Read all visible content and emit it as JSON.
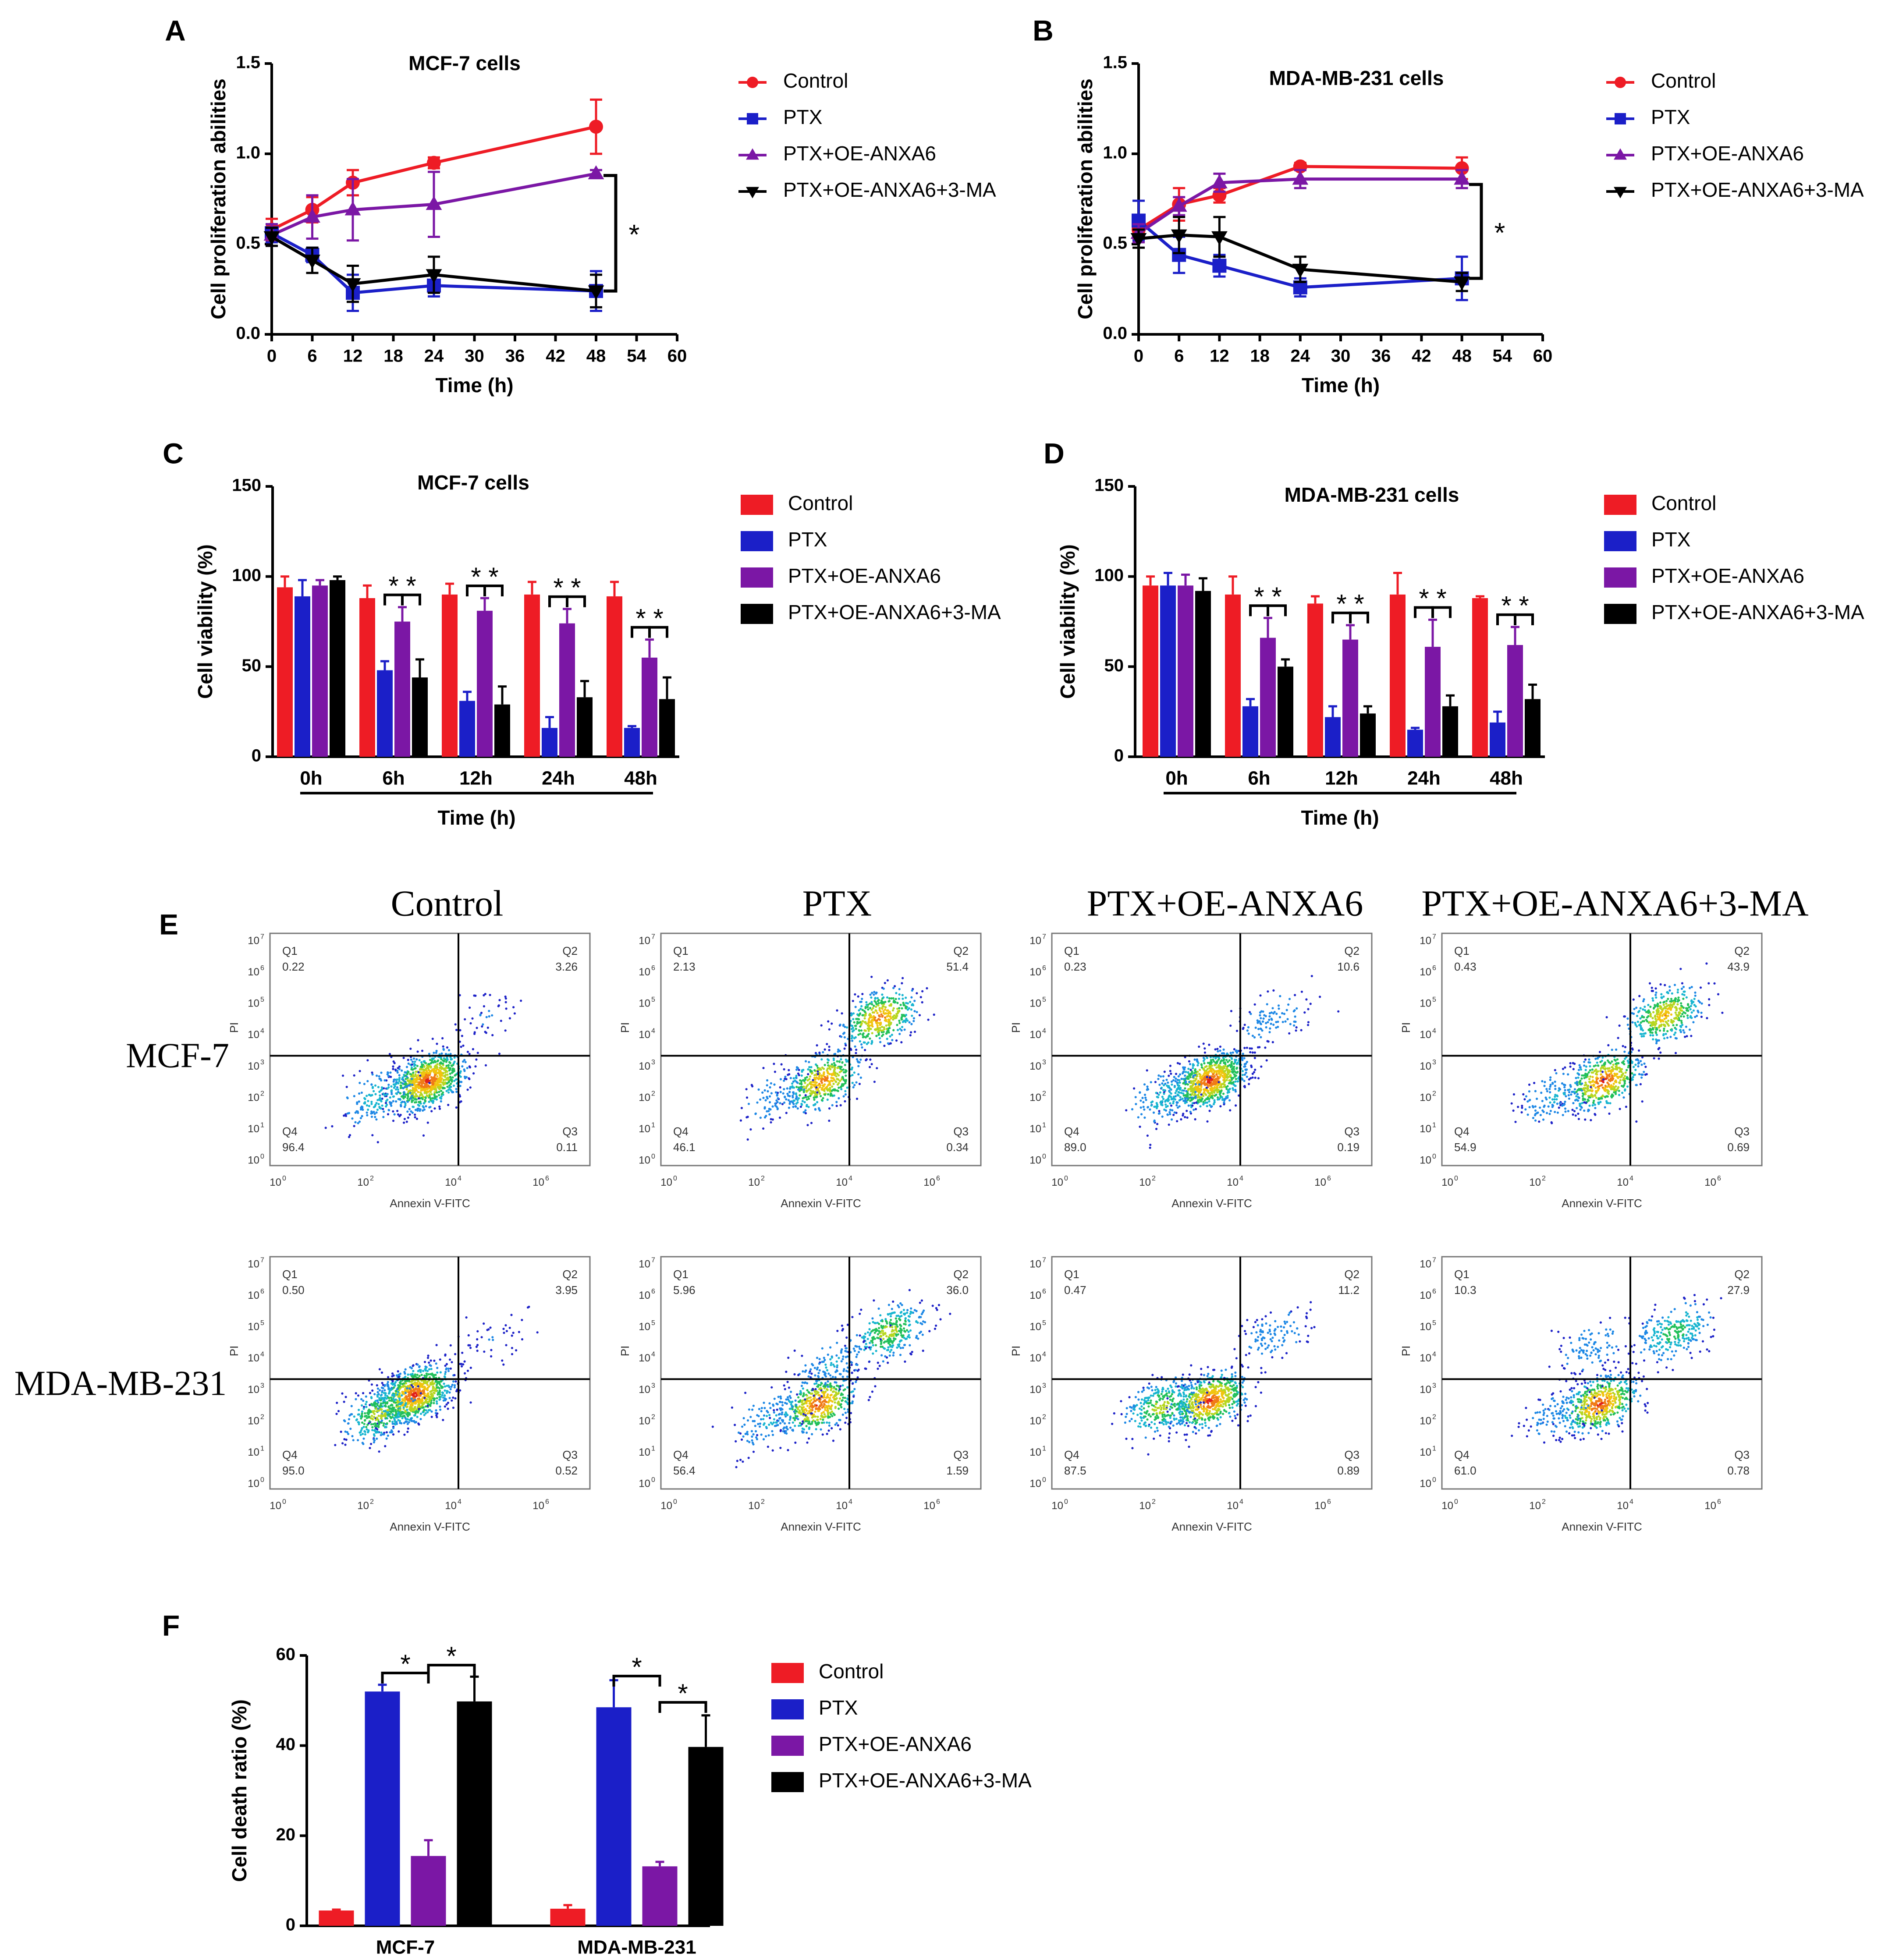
{
  "colors": {
    "control": "#ee1c25",
    "ptx": "#1b1fc8",
    "oe": "#7b17a5",
    "ma": "#000000"
  },
  "chart_data": [
    {
      "id": "A",
      "panel_letter": "A",
      "type": "line",
      "title": "MCF-7 cells",
      "xlabel": "Time (h)",
      "ylabel": "Cell proliferation abilities",
      "xlim": [
        0,
        60
      ],
      "ylim": [
        0,
        1.5
      ],
      "xticks": [
        0,
        6,
        12,
        18,
        24,
        30,
        36,
        42,
        48,
        54,
        60
      ],
      "yticks": [
        0.0,
        0.5,
        1.0,
        1.5
      ],
      "ytick_labels": [
        "0.0",
        "0.5",
        "1.0",
        "1.5"
      ],
      "x": [
        0,
        6,
        12,
        24,
        48
      ],
      "series": [
        {
          "name": "Control",
          "values": [
            0.58,
            0.69,
            0.84,
            0.95,
            1.15
          ],
          "errors": [
            0.06,
            0.07,
            0.07,
            0.03,
            0.15
          ],
          "marker": "circle"
        },
        {
          "name": "PTX",
          "values": [
            0.56,
            0.44,
            0.23,
            0.27,
            0.24
          ],
          "errors": [
            0.05,
            0.04,
            0.1,
            0.06,
            0.11
          ],
          "marker": "square"
        },
        {
          "name": "PTX+OE-ANXA6",
          "values": [
            0.55,
            0.65,
            0.69,
            0.72,
            0.89
          ],
          "errors": [
            0.06,
            0.12,
            0.17,
            0.18,
            0.02
          ],
          "marker": "triangle-up"
        },
        {
          "name": "PTX+OE-ANXA6+3-MA",
          "values": [
            0.54,
            0.41,
            0.28,
            0.33,
            0.24
          ],
          "errors": [
            0.05,
            0.07,
            0.1,
            0.1,
            0.09
          ],
          "marker": "triangle-down"
        }
      ],
      "significance": [
        {
          "label": "*",
          "between": [
            "PTX+OE-ANXA6",
            "PTX+OE-ANXA6+3-MA"
          ],
          "at_x": 48,
          "y_range": [
            0.88,
            0.24
          ]
        }
      ]
    },
    {
      "id": "B",
      "panel_letter": "B",
      "type": "line",
      "title": "MDA-MB-231 cells",
      "xlabel": "Time (h)",
      "ylabel": "Cell proliferation abilities",
      "xlim": [
        0,
        60
      ],
      "ylim": [
        0,
        1.5
      ],
      "xticks": [
        0,
        6,
        12,
        18,
        24,
        30,
        36,
        42,
        48,
        54,
        60
      ],
      "yticks": [
        0.0,
        0.5,
        1.0,
        1.5
      ],
      "ytick_labels": [
        "0.0",
        "0.5",
        "1.0",
        "1.5"
      ],
      "x": [
        0,
        6,
        12,
        24,
        48
      ],
      "series": [
        {
          "name": "Control",
          "values": [
            0.58,
            0.72,
            0.77,
            0.93,
            0.92
          ],
          "errors": [
            0.05,
            0.09,
            0.04,
            0.02,
            0.06
          ],
          "marker": "circle"
        },
        {
          "name": "PTX",
          "values": [
            0.63,
            0.44,
            0.38,
            0.26,
            0.31
          ],
          "errors": [
            0.11,
            0.1,
            0.06,
            0.05,
            0.12
          ],
          "marker": "square"
        },
        {
          "name": "PTX+OE-ANXA6",
          "values": [
            0.56,
            0.71,
            0.84,
            0.86,
            0.86
          ],
          "errors": [
            0.05,
            0.05,
            0.05,
            0.05,
            0.05
          ],
          "marker": "triangle-up"
        },
        {
          "name": "PTX+OE-ANXA6+3-MA",
          "values": [
            0.53,
            0.55,
            0.54,
            0.36,
            0.29
          ],
          "errors": [
            0.05,
            0.1,
            0.11,
            0.07,
            0.05
          ],
          "marker": "triangle-down"
        }
      ],
      "significance": [
        {
          "label": "*",
          "between": [
            "PTX+OE-ANXA6",
            "PTX+OE-ANXA6+3-MA"
          ],
          "at_x": 48,
          "y_range": [
            0.83,
            0.31
          ]
        }
      ]
    },
    {
      "id": "C",
      "panel_letter": "C",
      "type": "bar",
      "title": "MCF-7 cells",
      "xlabel": "Time (h)",
      "ylabel": "Cell viability (%)",
      "ylim": [
        0,
        150
      ],
      "yticks": [
        0,
        50,
        100,
        150
      ],
      "ytick_labels": [
        "0",
        "50",
        "100",
        "150"
      ],
      "categories": [
        "0h",
        "6h",
        "12h",
        "24h",
        "48h"
      ],
      "series": [
        {
          "name": "Control",
          "values": [
            94,
            88,
            90,
            90,
            89
          ],
          "errors": [
            6,
            7,
            6,
            7,
            8
          ]
        },
        {
          "name": "PTX",
          "values": [
            89,
            48,
            31,
            16,
            16
          ],
          "errors": [
            9,
            5,
            5,
            6,
            1
          ]
        },
        {
          "name": "PTX+OE-ANXA6",
          "values": [
            95,
            75,
            81,
            74,
            55
          ],
          "errors": [
            3,
            8,
            7,
            8,
            10
          ]
        },
        {
          "name": "PTX+OE-ANXA6+3-MA",
          "values": [
            98,
            44,
            29,
            33,
            32
          ],
          "errors": [
            2,
            10,
            10,
            9,
            12
          ]
        }
      ],
      "significance": [
        {
          "category": "6h",
          "label": "*",
          "between": [
            "PTX",
            "PTX+OE-ANXA6"
          ]
        },
        {
          "category": "6h",
          "label": "*",
          "between": [
            "PTX+OE-ANXA6",
            "PTX+OE-ANXA6+3-MA"
          ]
        },
        {
          "category": "12h",
          "label": "*",
          "between": [
            "PTX",
            "PTX+OE-ANXA6"
          ]
        },
        {
          "category": "12h",
          "label": "*",
          "between": [
            "PTX+OE-ANXA6",
            "PTX+OE-ANXA6+3-MA"
          ]
        },
        {
          "category": "24h",
          "label": "*",
          "between": [
            "PTX",
            "PTX+OE-ANXA6"
          ]
        },
        {
          "category": "24h",
          "label": "*",
          "between": [
            "PTX+OE-ANXA6",
            "PTX+OE-ANXA6+3-MA"
          ]
        },
        {
          "category": "48h",
          "label": "*",
          "between": [
            "PTX",
            "PTX+OE-ANXA6"
          ]
        },
        {
          "category": "48h",
          "label": "*",
          "between": [
            "PTX+OE-ANXA6",
            "PTX+OE-ANXA6+3-MA"
          ]
        }
      ]
    },
    {
      "id": "D",
      "panel_letter": "D",
      "type": "bar",
      "title": "MDA-MB-231 cells",
      "xlabel": "Time (h)",
      "ylabel": "Cell viability (%)",
      "ylim": [
        0,
        150
      ],
      "yticks": [
        0,
        50,
        100,
        150
      ],
      "ytick_labels": [
        "0",
        "50",
        "100",
        "150"
      ],
      "categories": [
        "0h",
        "6h",
        "12h",
        "24h",
        "48h"
      ],
      "series": [
        {
          "name": "Control",
          "values": [
            95,
            90,
            85,
            90,
            88
          ],
          "errors": [
            5,
            10,
            4,
            12,
            1
          ]
        },
        {
          "name": "PTX",
          "values": [
            95,
            28,
            22,
            15,
            19
          ],
          "errors": [
            7,
            4,
            6,
            1,
            6
          ]
        },
        {
          "name": "PTX+OE-ANXA6",
          "values": [
            95,
            66,
            65,
            61,
            62
          ],
          "errors": [
            6,
            11,
            8,
            15,
            10
          ]
        },
        {
          "name": "PTX+OE-ANXA6+3-MA",
          "values": [
            92,
            50,
            24,
            28,
            32
          ],
          "errors": [
            7,
            4,
            4,
            6,
            8
          ]
        }
      ],
      "significance": [
        {
          "category": "6h",
          "label": "*",
          "between": [
            "PTX",
            "PTX+OE-ANXA6"
          ]
        },
        {
          "category": "6h",
          "label": "*",
          "between": [
            "PTX+OE-ANXA6",
            "PTX+OE-ANXA6+3-MA"
          ]
        },
        {
          "category": "12h",
          "label": "*",
          "between": [
            "PTX",
            "PTX+OE-ANXA6"
          ]
        },
        {
          "category": "12h",
          "label": "*",
          "between": [
            "PTX+OE-ANXA6",
            "PTX+OE-ANXA6+3-MA"
          ]
        },
        {
          "category": "24h",
          "label": "*",
          "between": [
            "PTX",
            "PTX+OE-ANXA6"
          ]
        },
        {
          "category": "24h",
          "label": "*",
          "between": [
            "PTX+OE-ANXA6",
            "PTX+OE-ANXA6+3-MA"
          ]
        },
        {
          "category": "48h",
          "label": "*",
          "between": [
            "PTX",
            "PTX+OE-ANXA6"
          ]
        },
        {
          "category": "48h",
          "label": "*",
          "between": [
            "PTX+OE-ANXA6",
            "PTX+OE-ANXA6+3-MA"
          ]
        }
      ]
    },
    {
      "id": "E",
      "panel_letter": "E",
      "type": "scatter",
      "subtype": "flow-cytometry-density",
      "column_titles": [
        "Control",
        "PTX",
        "PTX+OE-ANXA6",
        "PTX+OE-ANXA6+3-MA"
      ],
      "row_titles": [
        "MCF-7",
        "MDA-MB-231"
      ],
      "xlabel": "Annexin V-FITC",
      "ylabel": "PI",
      "x_tick_exponents": [
        "0",
        "2",
        "4",
        "6"
      ],
      "y_tick_exponents": [
        "0",
        "1",
        "2",
        "3",
        "4",
        "5",
        "6",
        "7"
      ],
      "quadrant_labels": [
        "Q1",
        "Q2",
        "Q3",
        "Q4"
      ],
      "plots": [
        {
          "row": "MCF-7",
          "col": "Control",
          "Q1": "0.22",
          "Q2": "3.26",
          "Q3": "0.11",
          "Q4": "96.4",
          "populations": [
            {
              "x": 3.3,
              "y": 2.5,
              "weight": 1.0
            },
            {
              "x": 2.2,
              "y": 2.0,
              "weight": 0.2
            },
            {
              "x": 4.6,
              "y": 4.5,
              "weight": 0.05
            }
          ]
        },
        {
          "row": "MCF-7",
          "col": "PTX",
          "Q1": "2.13",
          "Q2": "51.4",
          "Q3": "0.34",
          "Q4": "46.1",
          "populations": [
            {
              "x": 3.4,
              "y": 2.5,
              "weight": 0.5
            },
            {
              "x": 4.7,
              "y": 4.5,
              "weight": 0.5
            },
            {
              "x": 2.3,
              "y": 2.0,
              "weight": 0.12
            }
          ]
        },
        {
          "row": "MCF-7",
          "col": "PTX+OE-ANXA6",
          "Q1": "0.23",
          "Q2": "10.6",
          "Q3": "0.19",
          "Q4": "89.0",
          "populations": [
            {
              "x": 3.3,
              "y": 2.5,
              "weight": 0.9
            },
            {
              "x": 4.8,
              "y": 4.5,
              "weight": 0.12
            },
            {
              "x": 2.3,
              "y": 2.0,
              "weight": 0.2
            }
          ]
        },
        {
          "row": "MCF-7",
          "col": "PTX+OE-ANXA6+3-MA",
          "Q1": "0.43",
          "Q2": "43.9",
          "Q3": "0.69",
          "Q4": "54.9",
          "populations": [
            {
              "x": 3.4,
              "y": 2.5,
              "weight": 0.55
            },
            {
              "x": 4.8,
              "y": 4.6,
              "weight": 0.45
            },
            {
              "x": 2.3,
              "y": 2.0,
              "weight": 0.15
            }
          ]
        },
        {
          "row": "MDA-MB-231",
          "col": "Control",
          "Q1": "0.50",
          "Q2": "3.95",
          "Q3": "0.52",
          "Q4": "95.0",
          "populations": [
            {
              "x": 3.0,
              "y": 2.8,
              "weight": 1.0
            },
            {
              "x": 2.2,
              "y": 2.2,
              "weight": 0.35
            },
            {
              "x": 4.8,
              "y": 4.6,
              "weight": 0.05
            }
          ]
        },
        {
          "row": "MDA-MB-231",
          "col": "PTX",
          "Q1": "5.96",
          "Q2": "36.0",
          "Q3": "1.59",
          "Q4": "56.4",
          "populations": [
            {
              "x": 3.3,
              "y": 2.5,
              "weight": 0.55
            },
            {
              "x": 4.9,
              "y": 4.8,
              "weight": 0.35
            },
            {
              "x": 3.6,
              "y": 3.8,
              "weight": 0.15
            },
            {
              "x": 2.2,
              "y": 2.0,
              "weight": 0.15
            }
          ]
        },
        {
          "row": "MDA-MB-231",
          "col": "PTX+OE-ANXA6",
          "Q1": "0.47",
          "Q2": "11.2",
          "Q3": "0.89",
          "Q4": "87.5",
          "populations": [
            {
              "x": 3.3,
              "y": 2.6,
              "weight": 0.7
            },
            {
              "x": 2.2,
              "y": 2.4,
              "weight": 0.35
            },
            {
              "x": 4.8,
              "y": 4.7,
              "weight": 0.12
            }
          ]
        },
        {
          "row": "MDA-MB-231",
          "col": "PTX+OE-ANXA6+3-MA",
          "Q1": "10.3",
          "Q2": "27.9",
          "Q3": "0.78",
          "Q4": "61.0",
          "populations": [
            {
              "x": 3.3,
              "y": 2.5,
              "weight": 0.6
            },
            {
              "x": 5.0,
              "y": 4.8,
              "weight": 0.28
            },
            {
              "x": 3.1,
              "y": 4.3,
              "weight": 0.12
            },
            {
              "x": 2.4,
              "y": 2.2,
              "weight": 0.12
            }
          ]
        }
      ]
    },
    {
      "id": "F",
      "panel_letter": "F",
      "type": "bar",
      "title": "",
      "xlabel": "",
      "ylabel": "Cell death ratio (%)",
      "ylim": [
        0,
        60
      ],
      "yticks": [
        0,
        20,
        40,
        60
      ],
      "ytick_labels": [
        "0",
        "20",
        "40",
        "60"
      ],
      "categories": [
        "MCF-7",
        "MDA-MB-231"
      ],
      "series": [
        {
          "name": "Control",
          "values": [
            3.4,
            3.8
          ],
          "errors": [
            0.2,
            0.8
          ]
        },
        {
          "name": "PTX",
          "values": [
            52,
            48.5
          ],
          "errors": [
            1.5,
            6
          ]
        },
        {
          "name": "PTX+OE-ANXA6",
          "values": [
            15.5,
            13.2
          ],
          "errors": [
            3.5,
            1.0
          ]
        },
        {
          "name": "PTX+OE-ANXA6+3-MA",
          "values": [
            49.8,
            39.7
          ],
          "errors": [
            5.5,
            7
          ]
        }
      ],
      "significance": [
        {
          "category": "MCF-7",
          "label": "*",
          "between": [
            "PTX",
            "PTX+OE-ANXA6"
          ]
        },
        {
          "category": "MCF-7",
          "label": "*",
          "between": [
            "PTX+OE-ANXA6",
            "PTX+OE-ANXA6+3-MA"
          ]
        },
        {
          "category": "MDA-MB-231",
          "label": "*",
          "between": [
            "PTX",
            "PTX+OE-ANXA6"
          ]
        },
        {
          "category": "MDA-MB-231",
          "label": "*",
          "between": [
            "PTX+OE-ANXA6",
            "PTX+OE-ANXA6+3-MA"
          ]
        }
      ]
    }
  ]
}
